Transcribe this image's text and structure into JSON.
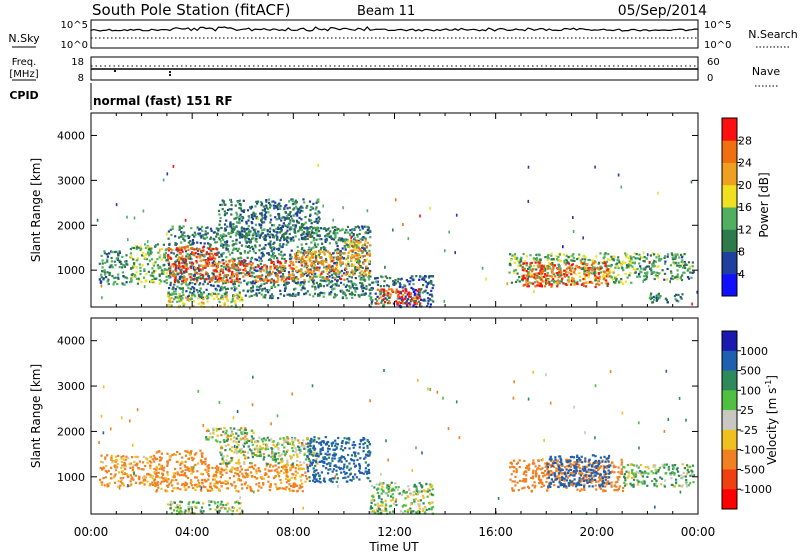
{
  "header": {
    "station": "South Pole Station (fitACF)",
    "beam": "Beam 11",
    "date": "05/Sep/2014"
  },
  "status_panels": {
    "nsky_label": "N.Sky",
    "nsky_ticks": [
      "10^5",
      "10^0"
    ],
    "nsearch_label": "N.Search",
    "nsearch_ticks": [
      "10^5",
      "10^0"
    ],
    "freq_label_1": "Freq.",
    "freq_label_2": "[MHz]",
    "freq_ticks": [
      "18",
      "8"
    ],
    "nave_label": "Nave",
    "nave_ticks": [
      "60",
      "0"
    ],
    "cpid_label": "CPID",
    "cpid_text": "normal (fast) 151 RF"
  },
  "colors": {
    "power_scale": [
      "#1010ff",
      "#2040a0",
      "#2e7a4a",
      "#50b060",
      "#f0e020",
      "#f0a020",
      "#f07010",
      "#ff1010"
    ],
    "velocity_scale": [
      "#1a1ab0",
      "#1f5faf",
      "#2e8a5a",
      "#50c040",
      "#c8c8c0",
      "#f0c020",
      "#f08020",
      "#f04010",
      "#ff0000"
    ]
  },
  "chart_data": [
    {
      "type": "heatmap",
      "panel": "power",
      "ylabel": "Slant Range [km]",
      "xlabel": "",
      "ylim": [
        180,
        4500
      ],
      "yticks": [
        "1000",
        "2000",
        "3000",
        "4000"
      ],
      "colorbar_label": "Power [dB]",
      "colorbar_ticks": [
        "4",
        "8",
        "12",
        "16",
        "20",
        "24",
        "28"
      ],
      "colorbar_range": [
        0,
        32
      ],
      "x_ticks": [
        "00:00",
        "04:00",
        "08:00",
        "12:00",
        "16:00",
        "20:00",
        "00:00"
      ],
      "regions": [
        {
          "t0": 0.3,
          "t1": 1.4,
          "r0": 700,
          "r1": 1450,
          "v": 11
        },
        {
          "t0": 1.5,
          "t1": 3.0,
          "r0": 700,
          "r1": 1600,
          "v": 14
        },
        {
          "t0": 3.0,
          "t1": 11.0,
          "r0": 400,
          "r1": 2000,
          "v": 10
        },
        {
          "t0": 3.0,
          "t1": 5.0,
          "r0": 750,
          "r1": 1550,
          "v": 27
        },
        {
          "t0": 5.0,
          "t1": 8.0,
          "r0": 750,
          "r1": 1250,
          "v": 26
        },
        {
          "t0": 8.0,
          "t1": 10.0,
          "r0": 800,
          "r1": 1450,
          "v": 24
        },
        {
          "t0": 10.0,
          "t1": 11.0,
          "r0": 900,
          "r1": 1700,
          "v": 22
        },
        {
          "t0": 5.0,
          "t1": 9.0,
          "r0": 1700,
          "r1": 2600,
          "v": 9
        },
        {
          "t0": 3.0,
          "t1": 6.0,
          "r0": 200,
          "r1": 500,
          "v": 17
        },
        {
          "t0": 11.0,
          "t1": 13.5,
          "r0": 200,
          "r1": 900,
          "v": 8
        },
        {
          "t0": 11.2,
          "t1": 13.0,
          "r0": 250,
          "r1": 600,
          "v": 28
        },
        {
          "t0": 16.5,
          "t1": 21.5,
          "r0": 700,
          "r1": 1400,
          "v": 14
        },
        {
          "t0": 17.0,
          "t1": 20.5,
          "r0": 650,
          "r1": 1200,
          "v": 27
        },
        {
          "t0": 21.5,
          "t1": 23.8,
          "r0": 800,
          "r1": 1400,
          "v": 12
        },
        {
          "t0": 22.0,
          "t1": 23.5,
          "r0": 300,
          "r1": 500,
          "v": 10
        }
      ]
    },
    {
      "type": "heatmap",
      "panel": "velocity",
      "ylabel": "Slant Range [km]",
      "xlabel": "Time UT",
      "ylim": [
        180,
        4500
      ],
      "yticks": [
        "1000",
        "2000",
        "3000",
        "4000"
      ],
      "colorbar_label": "Velocity [m s^-1]",
      "colorbar_ticks": [
        "1000",
        "500",
        "100",
        "25",
        "-25",
        "-100",
        "-500",
        "-1000"
      ],
      "x_ticks": [
        "00:00",
        "04:00",
        "08:00",
        "12:00",
        "16:00",
        "20:00",
        "00:00"
      ],
      "regions": [
        {
          "t0": 0.3,
          "t1": 2.5,
          "r0": 800,
          "r1": 1500,
          "v": -150
        },
        {
          "t0": 2.5,
          "t1": 4.5,
          "r0": 700,
          "r1": 1600,
          "v": -200
        },
        {
          "t0": 4.5,
          "t1": 8.5,
          "r0": 700,
          "r1": 1300,
          "v": -180
        },
        {
          "t0": 5.0,
          "t1": 9.0,
          "r0": 1300,
          "r1": 1900,
          "v": 30
        },
        {
          "t0": 4.5,
          "t1": 6.5,
          "r0": 1800,
          "r1": 2100,
          "v": 0
        },
        {
          "t0": 8.5,
          "t1": 11.0,
          "r0": 900,
          "r1": 1900,
          "v": 600
        },
        {
          "t0": 3.0,
          "t1": 6.0,
          "r0": 200,
          "r1": 500,
          "v": 40
        },
        {
          "t0": 11.0,
          "t1": 13.5,
          "r0": 200,
          "r1": 900,
          "v": 60
        },
        {
          "t0": 16.5,
          "t1": 21.0,
          "r0": 700,
          "r1": 1400,
          "v": -300
        },
        {
          "t0": 18.0,
          "t1": 20.5,
          "r0": 800,
          "r1": 1500,
          "v": 700
        },
        {
          "t0": 21.0,
          "t1": 23.8,
          "r0": 800,
          "r1": 1300,
          "v": 80
        }
      ]
    }
  ]
}
